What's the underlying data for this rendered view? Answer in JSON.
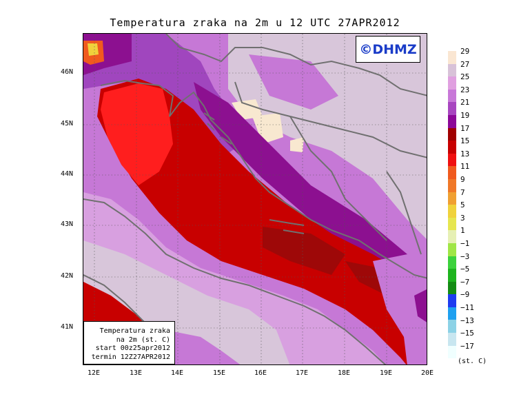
{
  "title": "Temperatura zraka na 2m u 12 UTC 27APR2012",
  "logo_text": "©DHMZ",
  "info": {
    "line1": "Temperatura zraka",
    "line2": "na 2m (st. C)",
    "line3": "start 00z25apr2012",
    "line4": "termin 12Z27APR2012"
  },
  "y_ticks": [
    "46N",
    "45N",
    "44N",
    "43N",
    "42N",
    "41N"
  ],
  "x_ticks": [
    "12E",
    "13E",
    "14E",
    "15E",
    "16E",
    "17E",
    "18E",
    "19E",
    "20E"
  ],
  "legend_units": "(st. C)",
  "legend_labels": [
    "29",
    "27",
    "25",
    "23",
    "21",
    "19",
    "17",
    "15",
    "13",
    "11",
    "9",
    "7",
    "5",
    "3",
    "1",
    "−1",
    "−3",
    "−5",
    "−7",
    "−9",
    "−11",
    "−13",
    "−15",
    "−17"
  ],
  "legend_colors": [
    "#fae6d2",
    "#d8c2d8",
    "#e0a0e0",
    "#c878d8",
    "#a846c0",
    "#8c0898",
    "#a00000",
    "#c80000",
    "#f01010",
    "#f05a1e",
    "#f07828",
    "#f0a032",
    "#f0d23c",
    "#e6e650",
    "#e6f0b4",
    "#a0e646",
    "#3cd23c",
    "#1eb41e",
    "#148c14",
    "#1e3cf0",
    "#1ea0f0",
    "#8cd2e6",
    "#c8e6f0",
    "#f0ffff"
  ],
  "map_colors": {
    "adriatic_hot": "#ff1e1e",
    "adriatic_warm": "#c80000",
    "adriatic_deep": "#9e0808",
    "land_light": "#d8a0e0",
    "land_mid": "#c678d6",
    "land_dark": "#a046be",
    "land_purple": "#8c1090",
    "land_pale": "#d8c6da",
    "land_cream": "#f8e8d0",
    "coast": "#707070"
  }
}
